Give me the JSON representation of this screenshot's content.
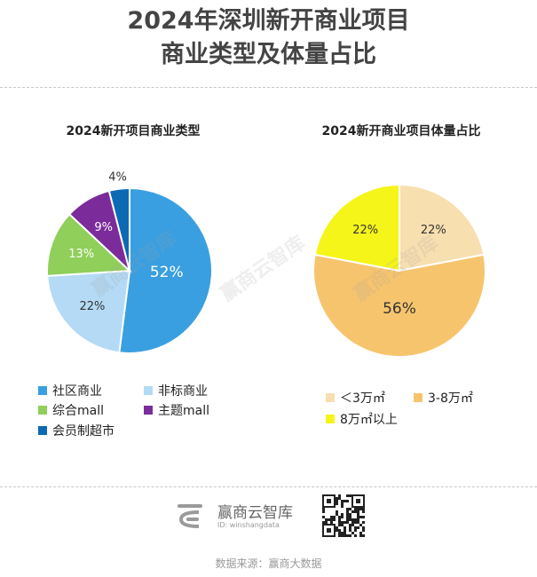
{
  "page": {
    "title_line1": "2024年深圳新开商业项目",
    "title_line2": "商业类型及体量占比",
    "watermark": "赢商云智库",
    "brand_name": "赢商云智库",
    "brand_id": "ID: winshangdata",
    "source": "数据来源：赢商大数据"
  },
  "chart_data": [
    {
      "type": "pie",
      "title": "2024新开项目商业类型",
      "slices": [
        {
          "label": "社区商业",
          "value": 52,
          "display": "52%",
          "color": "#3a9fe0",
          "text_color": "#ffffff"
        },
        {
          "label": "非标商业",
          "value": 22,
          "display": "22%",
          "color": "#b4daf5",
          "text_color": "#333333"
        },
        {
          "label": "综合mall",
          "value": 13,
          "display": "13%",
          "color": "#8fcf5a",
          "text_color": "#ffffff"
        },
        {
          "label": "主题mall",
          "value": 9,
          "display": "9%",
          "color": "#7c2c9a",
          "text_color": "#ffffff"
        },
        {
          "label": "会员制超市",
          "value": 4,
          "display": "4%",
          "color": "#0c6ab4",
          "text_color": "#333333"
        }
      ]
    },
    {
      "type": "pie",
      "title": "2024新开商业项目体量占比",
      "slices": [
        {
          "label": "＜3万㎡",
          "value": 22,
          "display": "22%",
          "color": "#f8dfb0",
          "text_color": "#333333"
        },
        {
          "label": "3-8万㎡",
          "value": 56,
          "display": "56%",
          "color": "#f7c46e",
          "text_color": "#333333"
        },
        {
          "label": "8万㎡以上",
          "value": 22,
          "display": "22%",
          "color": "#f5f51a",
          "text_color": "#333333"
        }
      ]
    }
  ]
}
